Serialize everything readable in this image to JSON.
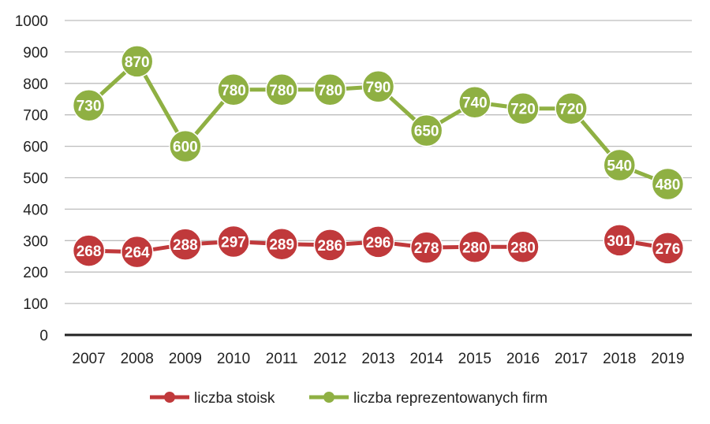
{
  "chart_data": {
    "type": "line",
    "x": [
      "2007",
      "2008",
      "2009",
      "2010",
      "2011",
      "2012",
      "2013",
      "2014",
      "2015",
      "2016",
      "2017",
      "2018",
      "2019"
    ],
    "ylim": [
      0,
      1000
    ],
    "yticks": [
      0,
      100,
      200,
      300,
      400,
      500,
      600,
      700,
      800,
      900,
      1000
    ],
    "grid": true,
    "legend_position": "bottom",
    "series": [
      {
        "name": "liczba stoisk",
        "color": "#c0393b",
        "values": [
          268,
          264,
          288,
          297,
          289,
          286,
          296,
          278,
          280,
          280,
          null,
          301,
          276
        ]
      },
      {
        "name": "liczba reprezentowanych firm",
        "color": "#8fb043",
        "values": [
          730,
          870,
          600,
          780,
          780,
          780,
          790,
          650,
          740,
          720,
          720,
          540,
          480
        ]
      }
    ]
  }
}
